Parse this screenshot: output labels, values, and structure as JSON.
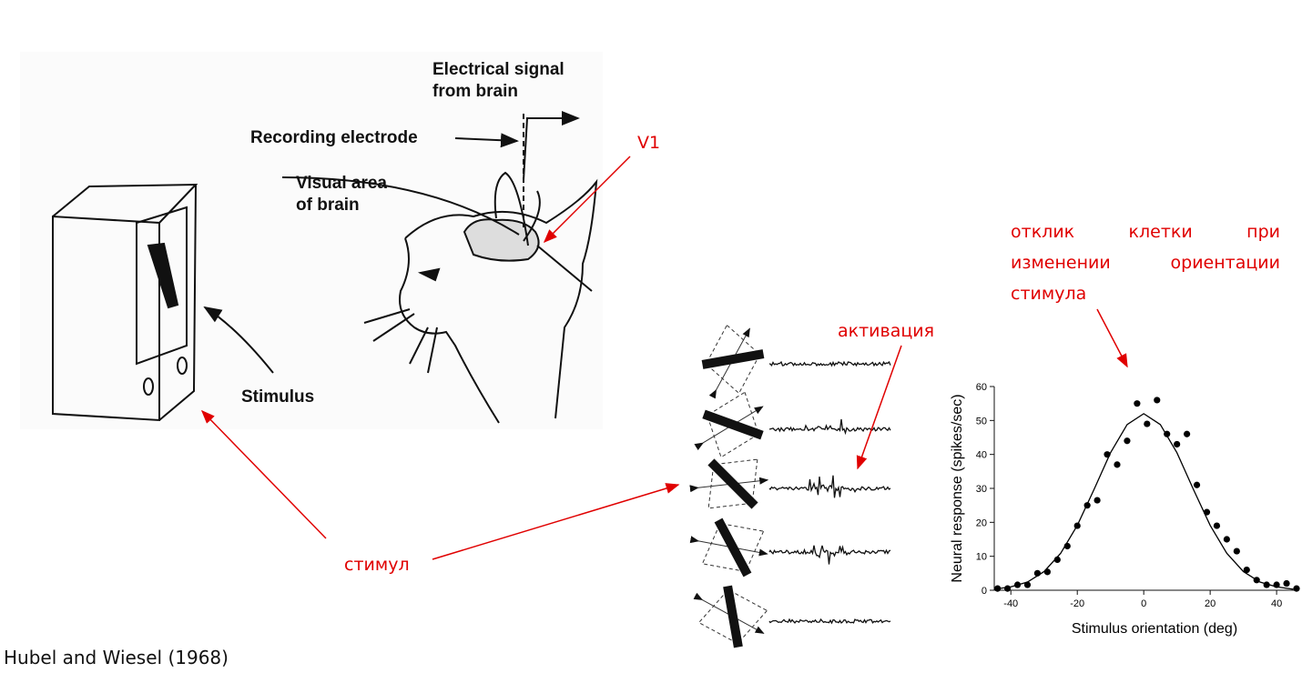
{
  "illustration": {
    "electrical_signal": [
      "Electrical signal",
      "from brain"
    ],
    "recording_electrode": "Recording electrode",
    "visual_area": [
      "Visual area",
      "of brain"
    ],
    "stimulus": "Stimulus"
  },
  "annotations": {
    "v1": "V1",
    "cell_response": "отклик клетки при изменении ориентации стимула",
    "activation": "активация",
    "stimulus": "стимул"
  },
  "footer": "Hubel and Wiesel (1968)",
  "chart_data": {
    "type": "scatter",
    "x_label": "Stimulus orientation (deg)",
    "y_label": "Neural response (spikes/sec)",
    "xlim": [
      -45,
      46
    ],
    "ylim": [
      0,
      60
    ],
    "xticks": [
      -40,
      -20,
      0,
      20,
      40
    ],
    "yticks": [
      0,
      10,
      20,
      30,
      40,
      50,
      60
    ],
    "points": {
      "color": "#000000",
      "x": [
        -44,
        -41,
        -38,
        -35,
        -32,
        -29,
        -26,
        -23,
        -20,
        -17,
        -14,
        -11,
        -8,
        -5,
        -2,
        1,
        4,
        7,
        10,
        13,
        16,
        19,
        22,
        25,
        28,
        31,
        34,
        37,
        40,
        43,
        46
      ],
      "values": [
        0.5,
        0.5,
        1.6,
        1.6,
        5,
        5.4,
        9,
        13,
        19,
        25,
        26.5,
        40,
        37,
        44,
        55,
        49,
        56,
        46,
        43,
        46,
        31,
        23,
        19,
        15,
        11.5,
        6,
        3,
        1.6,
        1.6,
        2,
        0.5
      ]
    },
    "fit_curve": {
      "color": "#000000",
      "x": [
        -45,
        -40,
        -35,
        -30,
        -25,
        -20,
        -15,
        -10,
        -5,
        0,
        5,
        10,
        15,
        20,
        25,
        30,
        35,
        40,
        45
      ],
      "values": [
        0.3,
        1.0,
        2.4,
        5.5,
        10.9,
        19.1,
        29.6,
        40.5,
        48.8,
        52,
        48.8,
        40.5,
        29.6,
        19.1,
        10.9,
        5.5,
        2.4,
        1.0,
        0.3
      ]
    }
  }
}
